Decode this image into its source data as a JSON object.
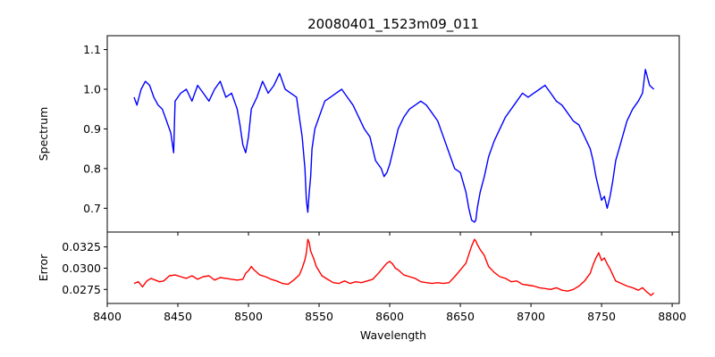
{
  "chart_data": [
    {
      "type": "line",
      "panel": "top",
      "title": "20080401_1523m09_011",
      "xlabel": "",
      "ylabel": "Spectrum",
      "xlim": [
        8400,
        8805
      ],
      "ylim": [
        0.64,
        1.135
      ],
      "xticks": [
        8400,
        8450,
        8500,
        8550,
        8600,
        8650,
        8700,
        8750,
        8800
      ],
      "yticks": [
        0.7,
        0.8,
        0.9,
        1.0,
        1.1
      ],
      "ytick_labels": [
        "0.7",
        "0.8",
        "0.9",
        "1.0",
        "1.1"
      ],
      "grid": false,
      "series": [
        {
          "color": "#0000ff",
          "x": [
            8419,
            8421,
            8424,
            8427,
            8430,
            8433,
            8436,
            8439,
            8442,
            8445,
            8447,
            8448,
            8452,
            8456,
            8460,
            8464,
            8468,
            8472,
            8476,
            8480,
            8484,
            8488,
            8492,
            8494,
            8496,
            8498,
            8500,
            8502,
            8506,
            8510,
            8514,
            8518,
            8522,
            8526,
            8530,
            8534,
            8536,
            8538,
            8540,
            8541,
            8542,
            8543,
            8544,
            8545,
            8547,
            8550,
            8554,
            8558,
            8562,
            8566,
            8570,
            8574,
            8578,
            8582,
            8586,
            8590,
            8594,
            8596,
            8598,
            8600,
            8602,
            8604,
            8606,
            8610,
            8614,
            8618,
            8622,
            8626,
            8630,
            8634,
            8638,
            8642,
            8646,
            8650,
            8654,
            8656,
            8658,
            8660,
            8661,
            8662,
            8664,
            8667,
            8670,
            8674,
            8678,
            8682,
            8686,
            8690,
            8694,
            8698,
            8702,
            8706,
            8710,
            8714,
            8718,
            8722,
            8726,
            8730,
            8734,
            8738,
            8742,
            8744,
            8746,
            8748,
            8750,
            8752,
            8754,
            8756,
            8758,
            8760,
            8764,
            8768,
            8772,
            8776,
            8779,
            8781,
            8784,
            8787
          ],
          "y": [
            0.98,
            0.96,
            1.0,
            1.02,
            1.01,
            0.98,
            0.96,
            0.95,
            0.92,
            0.89,
            0.84,
            0.97,
            0.99,
            1.0,
            0.97,
            1.01,
            0.99,
            0.97,
            1.0,
            1.02,
            0.98,
            0.99,
            0.95,
            0.91,
            0.86,
            0.84,
            0.88,
            0.95,
            0.98,
            1.02,
            0.99,
            1.01,
            1.04,
            1.0,
            0.99,
            0.98,
            0.93,
            0.88,
            0.8,
            0.72,
            0.69,
            0.74,
            0.78,
            0.85,
            0.9,
            0.93,
            0.97,
            0.98,
            0.99,
            1.0,
            0.98,
            0.96,
            0.93,
            0.9,
            0.88,
            0.82,
            0.8,
            0.78,
            0.79,
            0.81,
            0.84,
            0.87,
            0.9,
            0.93,
            0.95,
            0.96,
            0.97,
            0.96,
            0.94,
            0.92,
            0.88,
            0.84,
            0.8,
            0.79,
            0.74,
            0.7,
            0.67,
            0.665,
            0.67,
            0.7,
            0.74,
            0.78,
            0.83,
            0.87,
            0.9,
            0.93,
            0.95,
            0.97,
            0.99,
            0.98,
            0.99,
            1.0,
            1.01,
            0.99,
            0.97,
            0.96,
            0.94,
            0.92,
            0.91,
            0.88,
            0.85,
            0.82,
            0.78,
            0.75,
            0.72,
            0.73,
            0.7,
            0.73,
            0.77,
            0.82,
            0.87,
            0.92,
            0.95,
            0.97,
            0.99,
            1.05,
            1.01,
            1.0
          ]
        }
      ]
    },
    {
      "type": "line",
      "panel": "bottom",
      "title": "",
      "xlabel": "Wavelength",
      "ylabel": "Error",
      "xlim": [
        8400,
        8805
      ],
      "ylim": [
        0.02585,
        0.03425
      ],
      "xticks": [
        8400,
        8450,
        8500,
        8550,
        8600,
        8650,
        8700,
        8750,
        8800
      ],
      "xtick_labels": [
        "8400",
        "8450",
        "8500",
        "8550",
        "8600",
        "8650",
        "8700",
        "8750",
        "8800"
      ],
      "yticks": [
        0.0275,
        0.03,
        0.0325
      ],
      "ytick_labels": [
        "0.0275",
        "0.0300",
        "0.0325"
      ],
      "grid": false,
      "series": [
        {
          "color": "#ff0000",
          "x": [
            8419,
            8422,
            8425,
            8428,
            8431,
            8434,
            8437,
            8440,
            8444,
            8448,
            8452,
            8456,
            8460,
            8464,
            8468,
            8472,
            8476,
            8480,
            8484,
            8488,
            8492,
            8496,
            8498,
            8500,
            8502,
            8504,
            8508,
            8512,
            8516,
            8520,
            8524,
            8528,
            8532,
            8536,
            8538,
            8540,
            8541,
            8542,
            8543,
            8544,
            8546,
            8548,
            8552,
            8556,
            8560,
            8564,
            8568,
            8572,
            8576,
            8580,
            8584,
            8588,
            8592,
            8596,
            8598,
            8600,
            8602,
            8604,
            8606,
            8610,
            8614,
            8618,
            8622,
            8626,
            8630,
            8634,
            8638,
            8642,
            8646,
            8650,
            8654,
            8656,
            8658,
            8660,
            8661,
            8662,
            8664,
            8667,
            8670,
            8674,
            8678,
            8682,
            8686,
            8690,
            8694,
            8698,
            8702,
            8706,
            8710,
            8714,
            8718,
            8722,
            8726,
            8730,
            8734,
            8738,
            8742,
            8744,
            8746,
            8748,
            8750,
            8752,
            8754,
            8756,
            8758,
            8760,
            8764,
            8768,
            8772,
            8776,
            8779,
            8782,
            8785,
            8787
          ],
          "y": [
            0.0282,
            0.0284,
            0.0278,
            0.0285,
            0.0288,
            0.0286,
            0.0284,
            0.0285,
            0.0291,
            0.0292,
            0.029,
            0.0288,
            0.0291,
            0.0287,
            0.029,
            0.0291,
            0.0286,
            0.0289,
            0.0288,
            0.0287,
            0.0286,
            0.0287,
            0.0294,
            0.0297,
            0.0302,
            0.0298,
            0.0292,
            0.029,
            0.0287,
            0.0285,
            0.0282,
            0.0281,
            0.0286,
            0.0292,
            0.03,
            0.031,
            0.0318,
            0.0334,
            0.033,
            0.032,
            0.0312,
            0.0302,
            0.0291,
            0.0287,
            0.0283,
            0.0282,
            0.0285,
            0.0282,
            0.0284,
            0.0283,
            0.0285,
            0.0287,
            0.0294,
            0.0302,
            0.0306,
            0.0308,
            0.0305,
            0.03,
            0.0298,
            0.0292,
            0.029,
            0.0288,
            0.0284,
            0.0283,
            0.0282,
            0.0283,
            0.0282,
            0.0283,
            0.029,
            0.0298,
            0.0306,
            0.0316,
            0.0326,
            0.0334,
            0.0332,
            0.0328,
            0.0322,
            0.0315,
            0.0302,
            0.0295,
            0.029,
            0.0288,
            0.0284,
            0.0285,
            0.0281,
            0.028,
            0.0279,
            0.0277,
            0.0276,
            0.0275,
            0.0277,
            0.0274,
            0.0273,
            0.0275,
            0.0279,
            0.0285,
            0.0294,
            0.0304,
            0.0312,
            0.0318,
            0.0309,
            0.0312,
            0.0305,
            0.0299,
            0.0292,
            0.0285,
            0.0282,
            0.0279,
            0.0277,
            0.0274,
            0.0277,
            0.0272,
            0.0268,
            0.0271
          ]
        }
      ]
    }
  ]
}
